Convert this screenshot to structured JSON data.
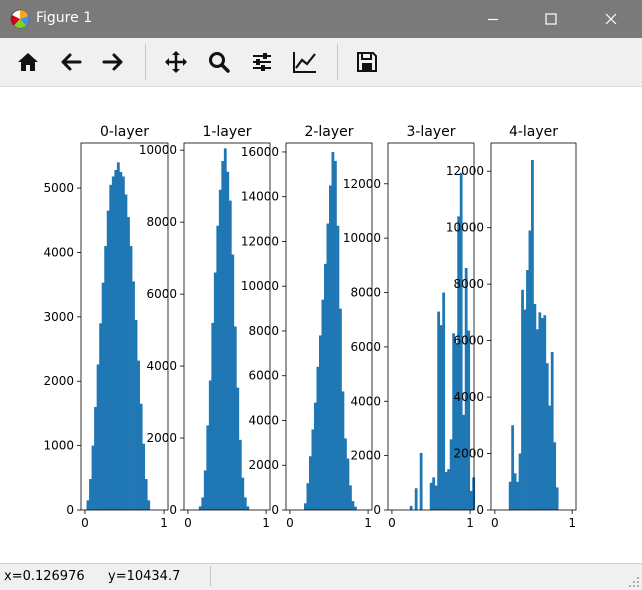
{
  "window": {
    "title": "Figure 1",
    "app_icon": "matplotlib-icon",
    "controls": [
      "minimize-icon",
      "maximize-icon",
      "close-icon"
    ]
  },
  "toolbar": {
    "buttons": [
      {
        "name": "home-button",
        "icon": "home-icon"
      },
      {
        "name": "back-button",
        "icon": "arrow-left-icon"
      },
      {
        "name": "forward-button",
        "icon": "arrow-right-icon"
      },
      {
        "name": "pan-button",
        "icon": "move-icon"
      },
      {
        "name": "zoom-button",
        "icon": "search-icon"
      },
      {
        "name": "configure-subplots-button",
        "icon": "sliders-icon"
      },
      {
        "name": "edit-axis-button",
        "icon": "line-chart-icon"
      },
      {
        "name": "save-button",
        "icon": "floppy-icon"
      }
    ]
  },
  "status": {
    "x": "x=0.126976",
    "y": "y=10434.7"
  },
  "colors": {
    "bar": "#1f77b4",
    "titlebar": "#7a7a7a"
  },
  "chart_data": [
    {
      "type": "bar",
      "title": "0-layer",
      "xlim": [
        -0.05,
        1.05
      ],
      "ylim": [
        0,
        5700
      ],
      "xticks": [
        "0",
        "1"
      ],
      "yticks": [
        0,
        1000,
        2000,
        3000,
        4000,
        5000
      ],
      "bin_start": 0.02,
      "bin_width": 0.032,
      "values": [
        150,
        480,
        1000,
        1600,
        2260,
        2900,
        3530,
        4100,
        4650,
        5050,
        5180,
        5280,
        5400,
        5250,
        5180,
        4900,
        4550,
        4100,
        3550,
        2950,
        2320,
        1650,
        1030,
        480,
        150
      ]
    },
    {
      "type": "bar",
      "title": "1-layer",
      "xlim": [
        -0.05,
        1.05
      ],
      "ylim": [
        0,
        10200
      ],
      "xticks": [
        "0",
        "1"
      ],
      "yticks": [
        0,
        2000,
        4000,
        6000,
        8000,
        10000
      ],
      "bin_start": 0.14,
      "bin_width": 0.032,
      "values": [
        100,
        350,
        1100,
        2350,
        3600,
        5200,
        6600,
        7900,
        8900,
        9700,
        10050,
        9400,
        8600,
        7100,
        5100,
        3400,
        1950,
        900,
        350,
        100
      ]
    },
    {
      "type": "bar",
      "title": "2-layer",
      "xlim": [
        -0.05,
        1.05
      ],
      "ylim": [
        0,
        16400
      ],
      "xticks": [
        "0",
        "1"
      ],
      "yticks": [
        0,
        2000,
        4000,
        6000,
        8000,
        10000,
        12000,
        14000,
        16000
      ],
      "bin_start": 0.18,
      "bin_width": 0.032,
      "values": [
        300,
        1200,
        2400,
        3600,
        4800,
        6400,
        7800,
        9400,
        11000,
        12800,
        14500,
        16000,
        15600,
        12700,
        9000,
        5300,
        3200,
        2300,
        1100,
        400,
        150
      ]
    },
    {
      "type": "bar",
      "title": "3-layer",
      "xlim": [
        -0.05,
        1.05
      ],
      "ylim": [
        0,
        13500
      ],
      "xticks": [
        "0",
        "1"
      ],
      "yticks": [
        0,
        2000,
        4000,
        6000,
        8000,
        10000,
        12000
      ],
      "bin_start": 0.1,
      "bin_width": 0.032,
      "values": [
        0,
        0,
        0,
        0,
        150,
        0,
        800,
        0,
        2100,
        0,
        0,
        0,
        1000,
        1200,
        900,
        7300,
        6800,
        8000,
        1400,
        1500,
        2600,
        6500,
        6100,
        10800,
        12400,
        3500,
        8900,
        6600,
        700,
        1200
      ]
    },
    {
      "type": "bar",
      "title": "4-layer",
      "xlim": [
        -0.05,
        1.05
      ],
      "ylim": [
        0,
        13000
      ],
      "xticks": [
        "0",
        "1"
      ],
      "yticks": [
        0,
        2000,
        4000,
        6000,
        8000,
        10000,
        12000
      ],
      "bin_start": 0.18,
      "bin_width": 0.032,
      "values": [
        1000,
        3000,
        1300,
        1000,
        2000,
        7800,
        7100,
        8500,
        9900,
        12400,
        7300,
        6400,
        7000,
        6800,
        6900,
        5200,
        3700,
        5600,
        2400,
        800
      ]
    }
  ]
}
